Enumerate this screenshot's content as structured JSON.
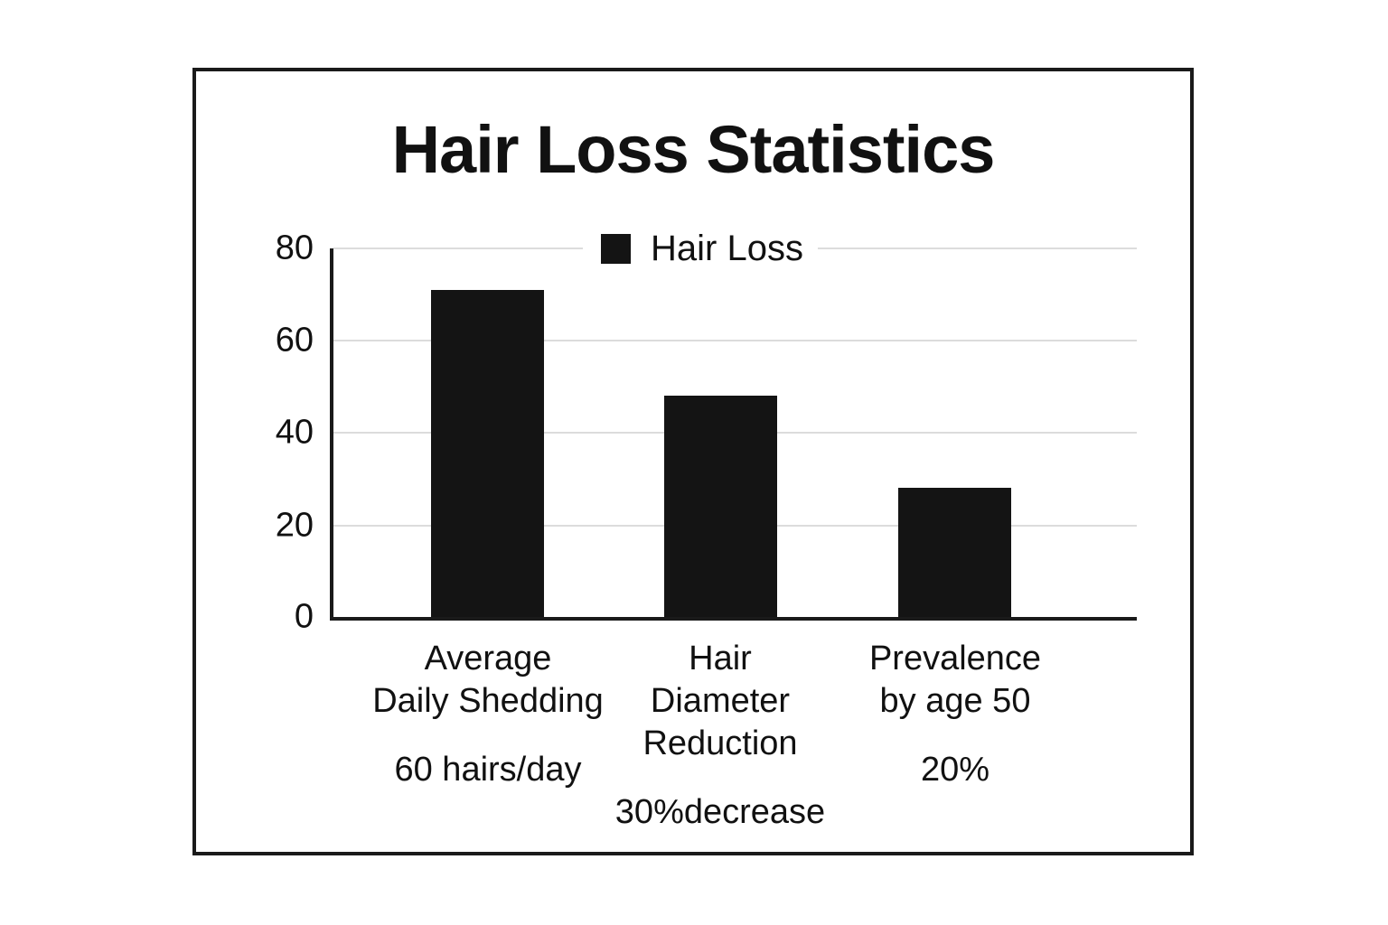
{
  "chart_data": {
    "type": "bar",
    "title": "Hair Loss Statistics",
    "legend": [
      {
        "label": "Hair Loss",
        "color": "#141414"
      }
    ],
    "legend_position": "upper center",
    "categories": [
      "Average Daily Shedding",
      "Hair Diameter Reduction",
      "Prevalence by age 50"
    ],
    "category_label_lines": [
      [
        "Average",
        "Daily Shedding"
      ],
      [
        "Hair",
        "Diameter",
        "Reduction"
      ],
      [
        "Prevalence",
        "by age 50"
      ]
    ],
    "value_annotations": [
      "60 hairs/day",
      "30%decrease",
      "20%"
    ],
    "values": [
      71,
      48,
      28
    ],
    "series": [
      {
        "name": "Hair Loss",
        "values": [
          71,
          48,
          28
        ]
      }
    ],
    "ylim": [
      0,
      80
    ],
    "yticks": [
      "80",
      "60",
      "40",
      "20",
      "0"
    ],
    "xlabel": "",
    "ylabel": "",
    "grid": true,
    "colors": {
      "bar": "#141414",
      "text": "#111111",
      "gridline": "#dcdcdc",
      "axis": "#1a1a1a",
      "frame": "#1a1a1a",
      "background": "#ffffff"
    }
  }
}
